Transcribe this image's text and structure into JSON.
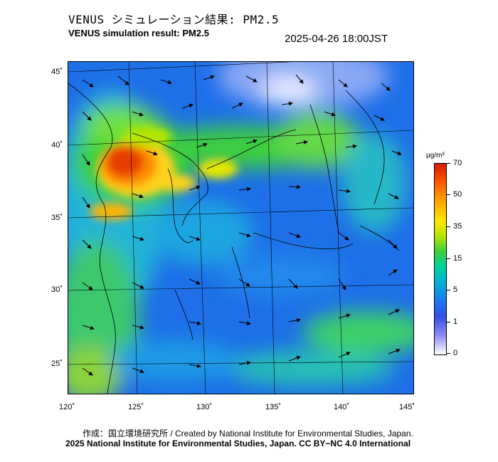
{
  "header": {
    "title_jp": "VENUS シミュレーション結果: PM2.5",
    "title_en": "VENUS simulation result: PM2.5",
    "timestamp": "2025-04-26 18:00JST"
  },
  "map": {
    "lat_labels": [
      "45˚",
      "40˚",
      "35˚",
      "30˚",
      "25˚"
    ],
    "lon_labels": [
      "120˚",
      "125˚",
      "130˚",
      "135˚",
      "140˚",
      "145˚"
    ]
  },
  "colorbar": {
    "unit": "μg/m³",
    "ticks": [
      "70",
      "50",
      "35",
      "15",
      "5",
      "1",
      "0"
    ],
    "colors": [
      "#d21e00",
      "#ff5a00",
      "#ffb400",
      "#ffe700",
      "#3ccf3c",
      "#00b4d2",
      "#1e78f0",
      "#ffffff"
    ]
  },
  "footer": {
    "credit_line": "作成：国立環境研究所 / Created by National Institute for Environmental Studies, Japan.",
    "license_line": "2025 National Institute for Environmental Studies, Japan. CC BY−NC 4.0 International"
  }
}
